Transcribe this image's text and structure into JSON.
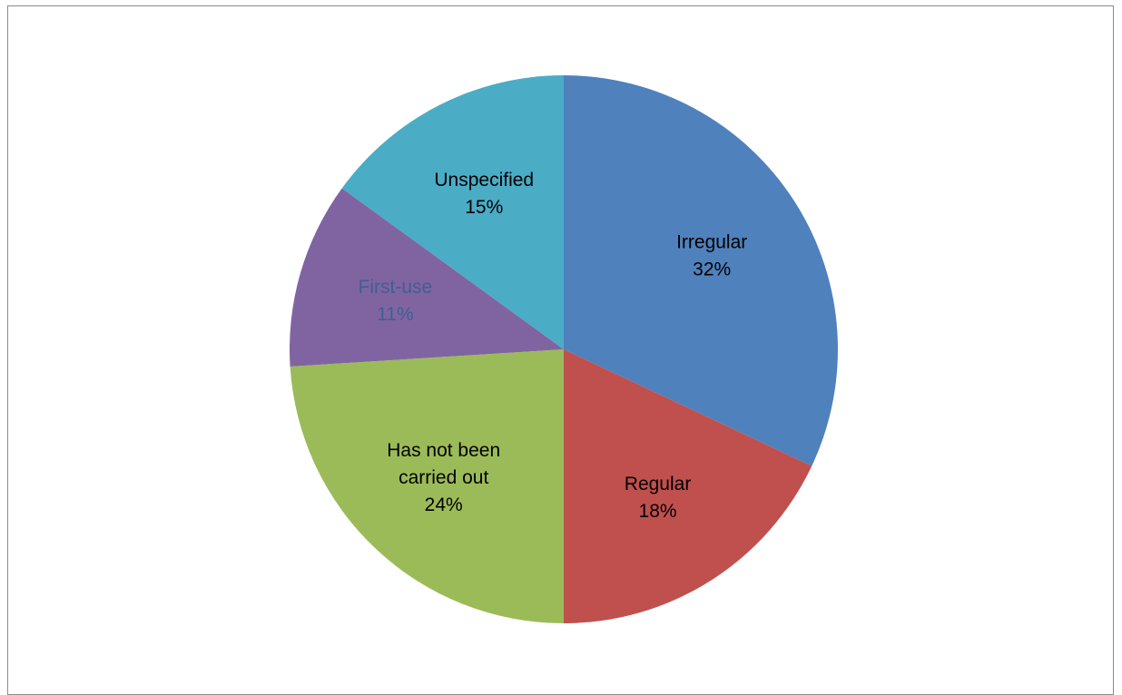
{
  "chart_data": {
    "type": "pie",
    "title": "",
    "start_angle_deg": 0,
    "direction": "clockwise",
    "legend": "none",
    "slices": [
      {
        "label": "Irregular",
        "value": 32,
        "value_label": "32%",
        "color": "#4F81BD",
        "label_color": "#000000"
      },
      {
        "label": "Regular",
        "value": 18,
        "value_label": "18%",
        "color": "#C0504D",
        "label_color": "#000000"
      },
      {
        "label": "Has not been carried out",
        "value": 24,
        "value_label": "24%",
        "color": "#9BBB59",
        "label_color": "#000000"
      },
      {
        "label": "First-use",
        "value": 11,
        "value_label": "11%",
        "color": "#8064A2",
        "label_color": "#3F5F8F"
      },
      {
        "label": "Unspecified",
        "value": 15,
        "value_label": "15%",
        "color": "#4BACC6",
        "label_color": "#000000"
      }
    ]
  }
}
